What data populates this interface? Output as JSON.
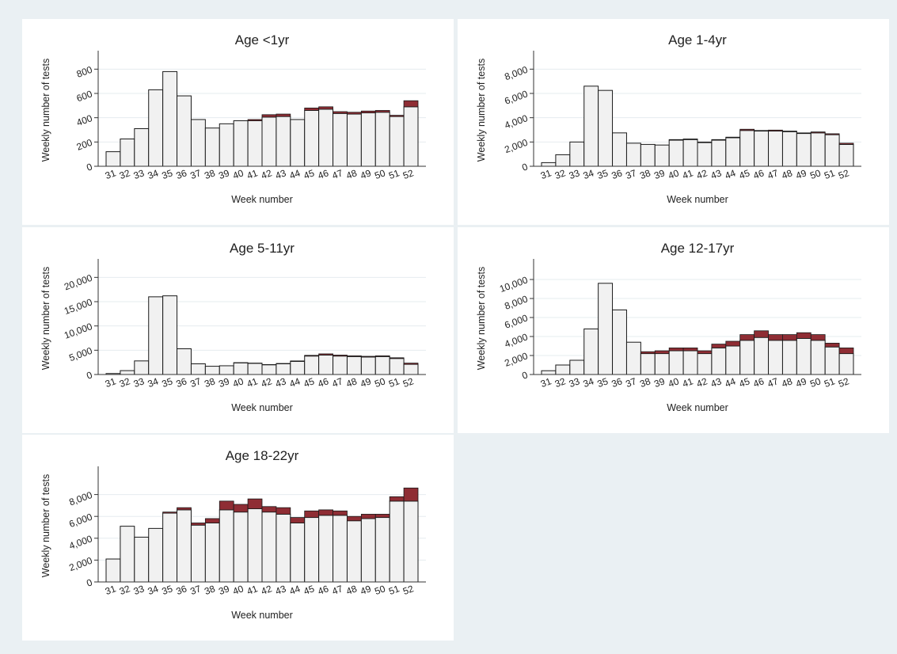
{
  "chart_data": [
    {
      "type": "bar",
      "title": "Age <1yr",
      "xlabel": "Week number",
      "ylabel": "Weekly number of tests",
      "ylim": [
        0,
        900
      ],
      "yticks": [
        0,
        200,
        400,
        600,
        800
      ],
      "ytick_labels": [
        "0",
        "200",
        "400",
        "600",
        "800"
      ],
      "categories": [
        "31",
        "32",
        "33",
        "34",
        "35",
        "36",
        "37",
        "38",
        "39",
        "40",
        "41",
        "42",
        "43",
        "44",
        "45",
        "46",
        "47",
        "48",
        "49",
        "50",
        "51",
        "52"
      ],
      "series": [
        {
          "values": [
            120,
            225,
            310,
            630,
            780,
            580,
            385,
            315,
            350,
            375,
            375,
            405,
            410,
            385,
            460,
            470,
            435,
            430,
            440,
            445,
            410,
            490
          ]
        },
        {
          "values": [
            0,
            0,
            0,
            0,
            0,
            0,
            0,
            0,
            0,
            0,
            10,
            20,
            20,
            0,
            20,
            20,
            15,
            15,
            15,
            15,
            10,
            50
          ]
        }
      ],
      "colors": {
        "bar_fill": "#f1f1f1",
        "stack_fill": "#8f2d34",
        "grid": "#e6ecef"
      }
    },
    {
      "type": "bar",
      "title": "Age 1-4yr",
      "xlabel": "Week number",
      "ylabel": "Weekly number of tests",
      "ylim": [
        0,
        9000
      ],
      "yticks": [
        0,
        2000,
        4000,
        6000,
        8000
      ],
      "ytick_labels": [
        "0",
        "2,000",
        "4,000",
        "6,000",
        "8,000"
      ],
      "categories": [
        "31",
        "32",
        "33",
        "34",
        "35",
        "36",
        "37",
        "38",
        "39",
        "40",
        "41",
        "42",
        "43",
        "44",
        "45",
        "46",
        "47",
        "48",
        "49",
        "50",
        "51",
        "52"
      ],
      "series": [
        {
          "values": [
            300,
            950,
            2000,
            6600,
            6250,
            2750,
            1900,
            1800,
            1750,
            2150,
            2200,
            1950,
            2150,
            2350,
            2950,
            2900,
            2900,
            2850,
            2700,
            2750,
            2600,
            1800
          ]
        },
        {
          "values": [
            0,
            0,
            0,
            0,
            0,
            0,
            0,
            0,
            0,
            50,
            50,
            50,
            50,
            50,
            100,
            50,
            80,
            50,
            50,
            80,
            80,
            100
          ]
        }
      ],
      "colors": {
        "bar_fill": "#f1f1f1",
        "stack_fill": "#8f2d34",
        "grid": "#e6ecef"
      }
    },
    {
      "type": "bar",
      "title": "Age 5-11yr",
      "xlabel": "Week number",
      "ylabel": "Weekly number of tests",
      "ylim": [
        0,
        22500
      ],
      "yticks": [
        0,
        5000,
        10000,
        15000,
        20000
      ],
      "ytick_labels": [
        "0",
        "5,000",
        "10,000",
        "15,000",
        "20,000"
      ],
      "categories": [
        "31",
        "32",
        "33",
        "34",
        "35",
        "36",
        "37",
        "38",
        "39",
        "40",
        "41",
        "42",
        "43",
        "44",
        "45",
        "46",
        "47",
        "48",
        "49",
        "50",
        "51",
        "52"
      ],
      "series": [
        {
          "values": [
            200,
            800,
            2800,
            16000,
            16200,
            5300,
            2200,
            1700,
            1800,
            2400,
            2300,
            2000,
            2200,
            2700,
            3800,
            4000,
            3800,
            3700,
            3600,
            3700,
            3300,
            2100
          ]
        },
        {
          "values": [
            0,
            0,
            0,
            0,
            0,
            0,
            0,
            0,
            0,
            50,
            50,
            50,
            80,
            100,
            150,
            250,
            200,
            150,
            150,
            150,
            150,
            250
          ]
        }
      ],
      "colors": {
        "bar_fill": "#f1f1f1",
        "stack_fill": "#8f2d34",
        "grid": "#e6ecef"
      }
    },
    {
      "type": "bar",
      "title": "Age 12-17yr",
      "xlabel": "Week number",
      "ylabel": "Weekly number of tests",
      "ylim": [
        0,
        11500
      ],
      "yticks": [
        0,
        2000,
        4000,
        6000,
        8000,
        10000
      ],
      "ytick_labels": [
        "0",
        "2,000",
        "4,000",
        "6,000",
        "8,000",
        "10,000"
      ],
      "categories": [
        "31",
        "32",
        "33",
        "34",
        "35",
        "36",
        "37",
        "38",
        "39",
        "40",
        "41",
        "42",
        "43",
        "44",
        "45",
        "46",
        "47",
        "48",
        "49",
        "50",
        "51",
        "52"
      ],
      "series": [
        {
          "values": [
            400,
            1000,
            1500,
            4800,
            9600,
            6800,
            3400,
            2200,
            2200,
            2500,
            2500,
            2200,
            2800,
            3000,
            3600,
            3900,
            3600,
            3600,
            3800,
            3600,
            2900,
            2200
          ]
        },
        {
          "values": [
            0,
            0,
            0,
            0,
            0,
            0,
            0,
            200,
            300,
            300,
            300,
            300,
            400,
            500,
            600,
            700,
            600,
            600,
            600,
            600,
            400,
            600
          ]
        }
      ],
      "colors": {
        "bar_fill": "#f1f1f1",
        "stack_fill": "#8f2d34",
        "grid": "#e6ecef"
      }
    },
    {
      "type": "bar",
      "title": "Age 18-22yr",
      "xlabel": "Week number",
      "ylabel": "Weekly number of tests",
      "ylim": [
        0,
        10000
      ],
      "yticks": [
        0,
        2000,
        4000,
        6000,
        8000
      ],
      "ytick_labels": [
        "0",
        "2,000",
        "4,000",
        "6,000",
        "8,000"
      ],
      "categories": [
        "31",
        "32",
        "33",
        "34",
        "35",
        "36",
        "37",
        "38",
        "39",
        "40",
        "41",
        "42",
        "43",
        "44",
        "45",
        "46",
        "47",
        "48",
        "49",
        "50",
        "51",
        "52"
      ],
      "series": [
        {
          "values": [
            2100,
            5100,
            4100,
            4900,
            6300,
            6600,
            5200,
            5400,
            6600,
            6400,
            6700,
            6400,
            6200,
            5400,
            5900,
            6100,
            6100,
            5600,
            5800,
            5900,
            7400,
            7400
          ]
        },
        {
          "values": [
            0,
            0,
            0,
            0,
            100,
            200,
            200,
            400,
            800,
            700,
            900,
            500,
            600,
            500,
            600,
            500,
            400,
            400,
            400,
            300,
            400,
            1200
          ]
        }
      ],
      "colors": {
        "bar_fill": "#f1f1f1",
        "stack_fill": "#8f2d34",
        "grid": "#e6ecef"
      }
    }
  ]
}
